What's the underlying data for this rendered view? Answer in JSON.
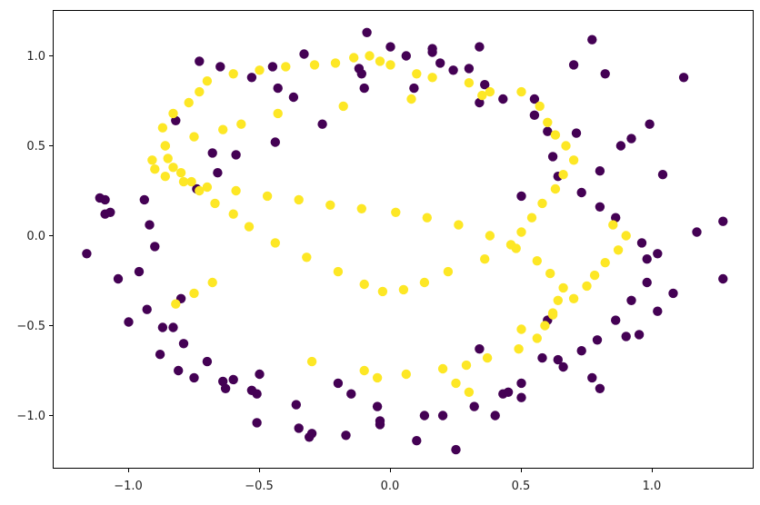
{
  "chart_data": {
    "type": "scatter",
    "title": "",
    "xlabel": "",
    "ylabel": "",
    "xlim": [
      -1.3,
      1.38
    ],
    "ylim": [
      -1.3,
      1.25
    ],
    "grid": false,
    "legend": "none",
    "x_ticks": [
      -1.0,
      -0.5,
      0.0,
      0.5,
      1.0
    ],
    "x_tick_labels": [
      "−1.0",
      "−0.5",
      "0.0",
      "0.5",
      "1.0"
    ],
    "y_ticks": [
      1.0,
      0.5,
      0.0,
      -0.5,
      -1.0
    ],
    "y_tick_labels": [
      "1.0",
      "0.5",
      "0.0",
      "−0.5",
      "−1.0"
    ],
    "colors": {
      "class0": "#440154",
      "class1": "#fde725"
    },
    "series": [
      {
        "class": 0,
        "x": [
          -0.09,
          0.34,
          0.0,
          -0.33,
          -1.16,
          -0.12,
          0.24,
          0.16,
          -1.11,
          -1.09,
          -1.09,
          -0.11,
          0.16,
          0.5,
          0.06,
          -1.07,
          -0.73,
          -0.65,
          -0.53,
          -0.43,
          -0.82,
          -0.37,
          0.34,
          0.55,
          0.7,
          0.77,
          0.82,
          1.12,
          1.27,
          1.27,
          1.17,
          1.08,
          1.02,
          0.8,
          0.88,
          0.92,
          0.99,
          1.04,
          0.64,
          0.58,
          0.34,
          -0.05,
          -0.04,
          -0.35,
          -0.36,
          -0.51,
          -0.64,
          -0.7,
          -0.79,
          -0.87,
          -0.93,
          -1.04,
          -0.96,
          -0.9,
          -0.92,
          -0.94,
          -0.74,
          -0.66,
          -0.59,
          -0.44,
          -0.26,
          -0.1,
          0.09,
          0.19,
          0.3,
          0.36,
          0.43,
          0.55,
          0.6,
          0.71,
          0.62,
          0.64,
          0.73,
          0.8,
          0.86,
          0.96,
          0.98,
          0.98,
          0.92,
          0.86,
          0.79,
          0.73,
          0.66,
          0.5,
          0.43,
          0.32,
          0.13,
          -0.04,
          -0.17,
          -0.31,
          -0.51,
          -0.53,
          -0.63,
          -0.75,
          -0.81,
          -0.88,
          -0.83,
          -0.5,
          -0.2,
          0.2,
          0.5,
          0.8,
          0.95,
          1.02,
          0.6,
          -0.6,
          -0.3,
          0.1,
          0.4,
          -0.8,
          -1.0,
          0.25,
          -0.15,
          0.45,
          0.77,
          -0.68,
          0.9,
          -0.45
        ],
        "y": [
          1.13,
          1.05,
          1.05,
          1.01,
          -0.1,
          0.93,
          0.92,
          1.02,
          0.21,
          0.2,
          0.12,
          0.9,
          1.04,
          0.22,
          1.0,
          0.13,
          0.97,
          0.94,
          0.88,
          0.82,
          0.64,
          0.77,
          0.74,
          0.76,
          0.95,
          1.09,
          0.9,
          0.88,
          0.08,
          -0.24,
          0.02,
          -0.32,
          -0.42,
          0.36,
          0.5,
          0.54,
          0.62,
          0.34,
          -0.69,
          -0.68,
          -0.63,
          -0.95,
          -1.03,
          -1.07,
          -0.94,
          -0.88,
          -0.81,
          -0.7,
          -0.6,
          -0.51,
          -0.41,
          -0.24,
          -0.2,
          -0.06,
          0.06,
          0.2,
          0.26,
          0.35,
          0.45,
          0.52,
          0.62,
          0.82,
          0.82,
          0.96,
          0.93,
          0.84,
          0.76,
          0.67,
          0.58,
          0.57,
          0.44,
          0.33,
          0.24,
          0.16,
          0.1,
          -0.04,
          -0.13,
          -0.26,
          -0.36,
          -0.47,
          -0.58,
          -0.64,
          -0.73,
          -0.82,
          -0.88,
          -0.95,
          -1.0,
          -1.05,
          -1.11,
          -1.12,
          -1.04,
          -0.86,
          -0.85,
          -0.79,
          -0.75,
          -0.66,
          -0.51,
          -0.77,
          -0.82,
          -1.0,
          -0.9,
          -0.85,
          -0.55,
          -0.1,
          -0.47,
          -0.8,
          -1.1,
          -1.14,
          -1.0,
          -0.35,
          -0.48,
          -1.19,
          -0.88,
          -0.87,
          -0.79,
          0.46,
          -0.56,
          0.94
        ]
      },
      {
        "class": 1,
        "x": [
          -0.08,
          -0.04,
          0.0,
          0.1,
          0.16,
          0.3,
          0.38,
          0.5,
          0.57,
          0.6,
          0.63,
          0.67,
          0.7,
          0.66,
          0.63,
          0.58,
          0.54,
          0.5,
          0.46,
          0.36,
          0.22,
          0.13,
          0.05,
          -0.03,
          -0.1,
          -0.2,
          -0.32,
          -0.44,
          -0.54,
          -0.6,
          -0.67,
          -0.73,
          -0.76,
          -0.8,
          -0.83,
          -0.85,
          -0.86,
          -0.87,
          -0.83,
          -0.77,
          -0.73,
          -0.7,
          -0.6,
          -0.5,
          -0.4,
          -0.29,
          -0.21,
          -0.14,
          -0.05,
          0.06,
          0.2,
          0.29,
          0.37,
          0.49,
          0.56,
          0.59,
          0.62,
          0.64,
          0.66,
          0.61,
          0.56,
          0.48,
          0.38,
          0.26,
          0.14,
          0.02,
          -0.11,
          -0.23,
          -0.35,
          -0.47,
          -0.59,
          -0.7,
          -0.79,
          -0.86,
          -0.9,
          -0.91,
          -0.86,
          -0.75,
          -0.64,
          -0.57,
          -0.43,
          -0.18,
          0.08,
          0.35,
          0.5,
          0.62,
          0.7,
          0.75,
          0.78,
          0.82,
          0.87,
          0.9,
          0.85,
          -0.82,
          -0.75,
          -0.68,
          -0.3,
          -0.1,
          0.25,
          0.3
        ],
        "y": [
          1.0,
          0.97,
          0.95,
          0.9,
          0.88,
          0.85,
          0.8,
          0.8,
          0.72,
          0.63,
          0.56,
          0.5,
          0.42,
          0.34,
          0.26,
          0.18,
          0.1,
          0.02,
          -0.05,
          -0.13,
          -0.2,
          -0.26,
          -0.3,
          -0.31,
          -0.27,
          -0.2,
          -0.12,
          -0.04,
          0.05,
          0.12,
          0.18,
          0.25,
          0.3,
          0.35,
          0.38,
          0.43,
          0.5,
          0.6,
          0.68,
          0.74,
          0.8,
          0.86,
          0.9,
          0.92,
          0.94,
          0.95,
          0.96,
          0.99,
          -0.79,
          -0.77,
          -0.74,
          -0.72,
          -0.68,
          -0.63,
          -0.57,
          -0.5,
          -0.43,
          -0.36,
          -0.29,
          -0.21,
          -0.14,
          -0.07,
          0.0,
          0.06,
          0.1,
          0.13,
          0.15,
          0.17,
          0.2,
          0.22,
          0.25,
          0.27,
          0.3,
          0.33,
          0.37,
          0.42,
          0.5,
          0.55,
          0.59,
          0.62,
          0.68,
          0.72,
          0.76,
          0.78,
          -0.52,
          -0.44,
          -0.35,
          -0.28,
          -0.22,
          -0.15,
          -0.08,
          0.0,
          0.06,
          -0.38,
          -0.32,
          -0.26,
          -0.7,
          -0.75,
          -0.82,
          -0.87
        ]
      }
    ]
  }
}
